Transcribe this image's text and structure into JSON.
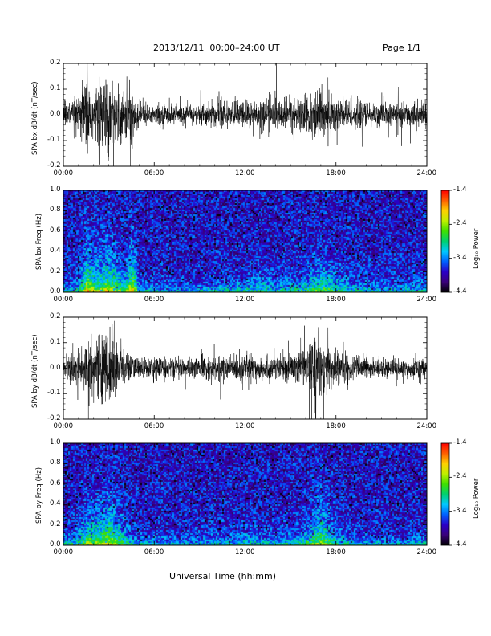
{
  "header": {
    "title": "2013/12/11  00:00–24:00 UT",
    "page": "Page 1/1"
  },
  "xaxis": {
    "title": "Universal Time (hh:mm)",
    "ticks": [
      "00:00",
      "06:00",
      "12:00",
      "18:00",
      "24:00"
    ],
    "range_hours": [
      0,
      24
    ]
  },
  "colorbar": {
    "title": "Log₁₀ Power",
    "ticks": [
      "-1.4",
      "-2.4",
      "-3.4",
      "-4.4"
    ],
    "range": [
      -4.4,
      -1.4
    ],
    "colors": [
      "#000000",
      "#3a007a",
      "#2a00c8",
      "#0060ff",
      "#00c8ff",
      "#00d070",
      "#40e000",
      "#c0f000",
      "#ffd000",
      "#ff6000",
      "#ff0000"
    ]
  },
  "chart_data": [
    {
      "type": "line",
      "ylabel": "SPA bx dB/dt (nT/sec)",
      "ylim": [
        -0.2,
        0.2
      ],
      "yticks": [
        "0.2",
        "0.1",
        "0.0",
        "-0.1",
        "-0.2"
      ],
      "envelope": {
        "description_hours": [
          0,
          24
        ],
        "hours": [
          0,
          1,
          1.5,
          2,
          3,
          4,
          4.5,
          5,
          6,
          7,
          8,
          9,
          10,
          11,
          12,
          13,
          14,
          15,
          16,
          17,
          18,
          19,
          20,
          21,
          22,
          23,
          24
        ],
        "amplitude": [
          0.06,
          0.08,
          0.2,
          0.14,
          0.18,
          0.1,
          0.2,
          0.06,
          0.05,
          0.05,
          0.04,
          0.05,
          0.06,
          0.06,
          0.07,
          0.08,
          0.07,
          0.08,
          0.09,
          0.13,
          0.1,
          0.07,
          0.06,
          0.06,
          0.05,
          0.06,
          0.06
        ]
      }
    },
    {
      "type": "heatmap",
      "ylabel": "SPA bx Freq (Hz)",
      "ylim": [
        0.0,
        1.0
      ],
      "yticks": [
        "1.0",
        "0.8",
        "0.6",
        "0.4",
        "0.2",
        "0.0"
      ],
      "power_range": [
        -4.4,
        -1.4
      ]
    },
    {
      "type": "line",
      "ylabel": "SPA by dB/dt (nT/sec)",
      "ylim": [
        -0.2,
        0.2
      ],
      "yticks": [
        "0.2",
        "0.1",
        "0.0",
        "-0.1",
        "-0.2"
      ],
      "envelope": {
        "hours": [
          0,
          1,
          1.5,
          2,
          3,
          4,
          4.5,
          5,
          6,
          7,
          8,
          9,
          10,
          11,
          12,
          13,
          14,
          15,
          16,
          17,
          18,
          19,
          20,
          21,
          22,
          23,
          24
        ],
        "amplitude": [
          0.05,
          0.09,
          0.15,
          0.14,
          0.18,
          0.1,
          0.07,
          0.05,
          0.05,
          0.05,
          0.04,
          0.05,
          0.06,
          0.06,
          0.07,
          0.06,
          0.06,
          0.07,
          0.1,
          0.16,
          0.09,
          0.06,
          0.05,
          0.05,
          0.04,
          0.05,
          0.05
        ]
      }
    },
    {
      "type": "heatmap",
      "ylabel": "SPA by Freq (Hz)",
      "ylim": [
        0.0,
        1.0
      ],
      "yticks": [
        "1.0",
        "0.8",
        "0.6",
        "0.4",
        "0.2",
        "0.0"
      ],
      "power_range": [
        -4.4,
        -1.4
      ]
    }
  ]
}
